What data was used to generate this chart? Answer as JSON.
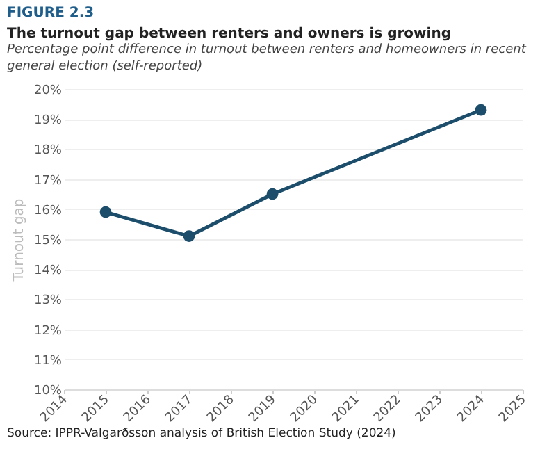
{
  "chart_data": {
    "type": "line",
    "title": "The turnout gap between renters and owners is growing",
    "subtitle": "Percentage point difference in turnout between renters and homeowners in recent general election (self-reported)",
    "annotations": [
      "FIGURE 2.3",
      "Source: IPPR-Valgarðsson analysis of British Election Study (2024)"
    ],
    "ylabel": "Turnout gap",
    "x": [
      2015,
      2017,
      2019,
      2024
    ],
    "series": [
      {
        "color": "#1c4e6b",
        "values": [
          15.9,
          15.1,
          16.5,
          19.3
        ]
      }
    ],
    "xlim": [
      2014,
      2025
    ],
    "xticks": [
      2014,
      2015,
      2016,
      2017,
      2018,
      2019,
      2020,
      2021,
      2022,
      2023,
      2024,
      2025
    ],
    "ylim": [
      10,
      20
    ],
    "yticks": [
      {
        "value": 10,
        "label": "10%"
      },
      {
        "value": 11,
        "label": "11%"
      },
      {
        "value": 12,
        "label": "12%"
      },
      {
        "value": 13,
        "label": "13%"
      },
      {
        "value": 14,
        "label": "14%"
      },
      {
        "value": 15,
        "label": "15%"
      },
      {
        "value": 16,
        "label": "16%"
      },
      {
        "value": 17,
        "label": "17%"
      },
      {
        "value": 18,
        "label": "18%"
      },
      {
        "value": 19,
        "label": "19%"
      },
      {
        "value": 20,
        "label": "20%"
      }
    ],
    "grid": "y",
    "marker": "circle",
    "line_style": "solid"
  }
}
